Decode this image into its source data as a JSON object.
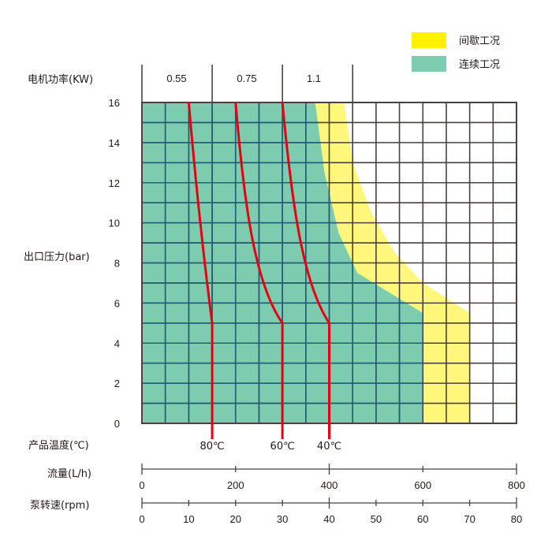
{
  "chart_data": {
    "type": "line",
    "title": "",
    "legend": {
      "position": "top-right",
      "entries": [
        {
          "label": "间歇工况",
          "color": "#FFF100"
        },
        {
          "label": "连续工况",
          "color": "#7ECCB0"
        }
      ]
    },
    "power_row": {
      "label": "电机功率(KW)",
      "segments": [
        {
          "label": "0.55",
          "flow_from": 0,
          "flow_to": 150
        },
        {
          "label": "0.75",
          "flow_from": 150,
          "flow_to": 300
        },
        {
          "label": "1.1",
          "flow_from": 300,
          "flow_to": 450
        }
      ]
    },
    "ylabel": "出口压力(bar)",
    "yticks": [
      "16",
      "14",
      "12",
      "10",
      "8",
      "6",
      "4",
      "2",
      "0"
    ],
    "ylim": [
      0,
      16
    ],
    "grid": true,
    "grid_columns": 16,
    "grid_rows": 16,
    "temperature_axis": {
      "label": "产品温度(℃)",
      "curves": [
        {
          "label": "80℃",
          "points": [
            [
              100,
              16
            ],
            [
              122,
              10
            ],
            [
              150,
              5
            ],
            [
              150,
              0
            ]
          ]
        },
        {
          "label": "60℃",
          "points": [
            [
              200,
              16
            ],
            [
              218,
              11
            ],
            [
              257,
              7
            ],
            [
              300,
              5
            ],
            [
              300,
              0
            ]
          ]
        },
        {
          "label": "40℃",
          "points": [
            [
              300,
              16
            ],
            [
              320,
              11
            ],
            [
              360,
              7
            ],
            [
              400,
              5
            ],
            [
              400,
              0
            ]
          ]
        }
      ],
      "curve_color": "#E60012"
    },
    "continuous_region": {
      "label": "连续工况",
      "boundary": [
        [
          370,
          16
        ],
        [
          390,
          12.5
        ],
        [
          420,
          9.5
        ],
        [
          460,
          7.5
        ],
        [
          600,
          5.5
        ],
        [
          600,
          0
        ]
      ]
    },
    "intermittent_region": {
      "label": "间歇工况",
      "boundary": [
        [
          432,
          16
        ],
        [
          450,
          13
        ],
        [
          490,
          10.5
        ],
        [
          540,
          8.5
        ],
        [
          600,
          7
        ],
        [
          700,
          5.5
        ],
        [
          700,
          0
        ]
      ]
    },
    "flow_axis": {
      "label": "流量(L/h)",
      "ticks": [
        "0",
        "200",
        "400",
        "600",
        "800"
      ],
      "range": [
        0,
        800
      ]
    },
    "speed_axis": {
      "label": "泵转速(rpm)",
      "ticks": [
        "0",
        "10",
        "20",
        "30",
        "40",
        "50",
        "60",
        "70",
        "80"
      ],
      "range": [
        0,
        80
      ]
    },
    "xlabel": "流量(L/h)"
  },
  "colors": {
    "continuous": "#7ECCB0",
    "intermittent": "#FFF67C",
    "intermittent_legend": "#FFF100",
    "grid_in_green": "#1E5F79",
    "grid_outside": "#4A4040",
    "curve": "#E60012",
    "axis": "#4A4040"
  }
}
